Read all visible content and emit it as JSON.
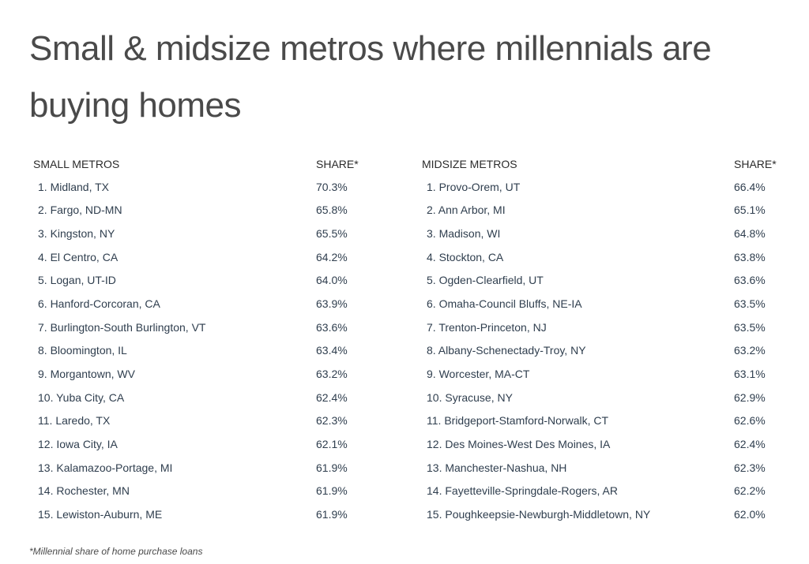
{
  "title": "Small & midsize metros where millennials are buying homes",
  "small_metros": {
    "header_name": "SMALL METROS",
    "header_share": "SHARE*",
    "rows": [
      {
        "name": "1. Midland, TX",
        "share": "70.3%"
      },
      {
        "name": "2. Fargo, ND-MN",
        "share": "65.8%"
      },
      {
        "name": "3. Kingston, NY",
        "share": "65.5%"
      },
      {
        "name": "4. El Centro, CA",
        "share": "64.2%"
      },
      {
        "name": "5. Logan, UT-ID",
        "share": "64.0%"
      },
      {
        "name": "6. Hanford-Corcoran, CA",
        "share": "63.9%"
      },
      {
        "name": "7. Burlington-South Burlington, VT",
        "share": "63.6%"
      },
      {
        "name": "8. Bloomington, IL",
        "share": "63.4%"
      },
      {
        "name": "9. Morgantown, WV",
        "share": "63.2%"
      },
      {
        "name": "10. Yuba City, CA",
        "share": "62.4%"
      },
      {
        "name": "11. Laredo, TX",
        "share": "62.3%"
      },
      {
        "name": "12. Iowa City, IA",
        "share": "62.1%"
      },
      {
        "name": "13. Kalamazoo-Portage, MI",
        "share": "61.9%"
      },
      {
        "name": "14. Rochester, MN",
        "share": "61.9%"
      },
      {
        "name": "15. Lewiston-Auburn, ME",
        "share": "61.9%"
      }
    ]
  },
  "midsize_metros": {
    "header_name": "MIDSIZE METROS",
    "header_share": "SHARE*",
    "rows": [
      {
        "name": "1. Provo-Orem, UT",
        "share": "66.4%"
      },
      {
        "name": "2. Ann Arbor, MI",
        "share": "65.1%"
      },
      {
        "name": "3. Madison, WI",
        "share": "64.8%"
      },
      {
        "name": "4. Stockton, CA",
        "share": "63.8%"
      },
      {
        "name": "5. Ogden-Clearfield, UT",
        "share": "63.6%"
      },
      {
        "name": "6. Omaha-Council Bluffs, NE-IA",
        "share": "63.5%"
      },
      {
        "name": "7. Trenton-Princeton, NJ",
        "share": "63.5%"
      },
      {
        "name": "8. Albany-Schenectady-Troy, NY",
        "share": "63.2%"
      },
      {
        "name": "9. Worcester, MA-CT",
        "share": "63.1%"
      },
      {
        "name": "10. Syracuse, NY",
        "share": "62.9%"
      },
      {
        "name": "11. Bridgeport-Stamford-Norwalk, CT",
        "share": "62.6%"
      },
      {
        "name": "12. Des Moines-West Des Moines, IA",
        "share": "62.4%"
      },
      {
        "name": "13. Manchester-Nashua, NH",
        "share": "62.3%"
      },
      {
        "name": "14. Fayetteville-Springdale-Rogers, AR",
        "share": "62.2%"
      },
      {
        "name": "15. Poughkeepsie-Newburgh-Middletown, NY",
        "share": "62.0%"
      }
    ]
  },
  "footnote": "*Millennial share of home purchase loans",
  "colors": {
    "title": "#4a4a4a",
    "header_text": "#2b2b2b",
    "row_text": "#2f3e4e"
  }
}
